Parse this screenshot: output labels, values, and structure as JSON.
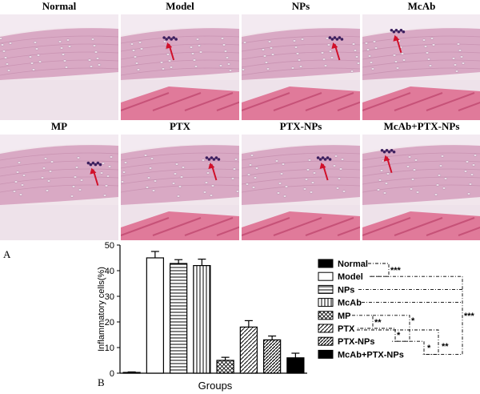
{
  "panel_a": {
    "label": "A",
    "panels": [
      {
        "title": "Normal",
        "arrow": false
      },
      {
        "title": "Model",
        "arrow": true
      },
      {
        "title": "NPs",
        "arrow": true
      },
      {
        "title": "McAb",
        "arrow": true
      },
      {
        "title": "MP",
        "arrow": true
      },
      {
        "title": "PTX",
        "arrow": true
      },
      {
        "title": "PTX-NPs",
        "arrow": true
      },
      {
        "title": "McAb+PTX-NPs",
        "arrow": true
      }
    ]
  },
  "panel_b": {
    "label": "B"
  },
  "chart_data": {
    "type": "bar",
    "xlabel": "Groups",
    "ylabel": "Inflammatory cells(%)",
    "ylim": [
      0,
      50
    ],
    "yticks": [
      "0",
      "10",
      "20",
      "30",
      "40",
      "50"
    ],
    "categories": [
      "Normal",
      "Model",
      "NPs",
      "McAb",
      "MP",
      "PTX",
      "PTX-NPs",
      "McAb+PTX-NPs"
    ],
    "values": [
      0.3,
      45,
      42.8,
      42,
      5,
      18,
      13,
      6
    ],
    "errors": [
      0.2,
      2.5,
      1.5,
      2.5,
      1.2,
      2.5,
      1.5,
      1.8
    ],
    "legend": {
      "placement": "right"
    },
    "significance": [
      "***",
      "***",
      "**",
      "*",
      "*",
      "**",
      "*"
    ]
  }
}
